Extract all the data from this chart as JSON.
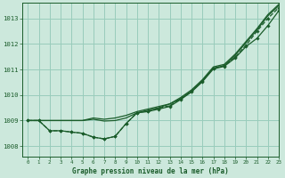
{
  "title": "Graphe pression niveau de la mer (hPa)",
  "bg_color": "#cce8dc",
  "grid_color": "#99ccbb",
  "line_color": "#1a5c2a",
  "xlim": [
    -0.5,
    23
  ],
  "ylim": [
    1007.6,
    1013.6
  ],
  "yticks": [
    1008,
    1009,
    1010,
    1011,
    1012,
    1013
  ],
  "xticks": [
    0,
    1,
    2,
    3,
    4,
    5,
    6,
    7,
    8,
    9,
    10,
    11,
    12,
    13,
    14,
    15,
    16,
    17,
    18,
    19,
    20,
    21,
    22,
    23
  ],
  "series": [
    {
      "y": [
        1009.0,
        1009.0,
        1009.0,
        1009.0,
        1009.0,
        1009.0,
        1009.1,
        1009.05,
        1009.1,
        1009.2,
        1009.35,
        1009.45,
        1009.55,
        1009.65,
        1009.85,
        1010.15,
        1010.55,
        1011.05,
        1011.15,
        1011.55,
        1012.05,
        1012.55,
        1013.1,
        1013.5
      ],
      "linestyle": "-",
      "marker": null,
      "lw": 0.9
    },
    {
      "y": [
        1009.0,
        1009.0,
        1009.0,
        1009.0,
        1009.0,
        1009.0,
        1009.05,
        1008.98,
        1009.0,
        1009.1,
        1009.3,
        1009.4,
        1009.5,
        1009.65,
        1009.9,
        1010.2,
        1010.6,
        1011.1,
        1011.2,
        1011.6,
        1012.1,
        1012.6,
        1013.15,
        1013.55
      ],
      "linestyle": "-",
      "marker": null,
      "lw": 0.9
    },
    {
      "y": [
        1009.0,
        1009.0,
        1008.6,
        1008.6,
        1008.55,
        1008.5,
        1008.35,
        1008.28,
        1008.38,
        1008.88,
        1009.3,
        1009.35,
        1009.45,
        1009.55,
        1009.82,
        1010.12,
        1010.52,
        1011.02,
        1011.12,
        1011.45,
        1011.9,
        1012.22,
        1012.72,
        1013.3
      ],
      "linestyle": "-",
      "marker": "D",
      "lw": 0.9
    },
    {
      "y": [
        1009.0,
        1009.0,
        1008.6,
        1008.6,
        1008.55,
        1008.5,
        1008.35,
        1008.28,
        1008.38,
        1008.88,
        1009.3,
        1009.38,
        1009.48,
        1009.58,
        1009.85,
        1010.15,
        1010.55,
        1011.05,
        1011.15,
        1011.48,
        1011.95,
        1012.5,
        1013.0,
        1013.42
      ],
      "linestyle": "--",
      "marker": "D",
      "lw": 0.9
    }
  ]
}
